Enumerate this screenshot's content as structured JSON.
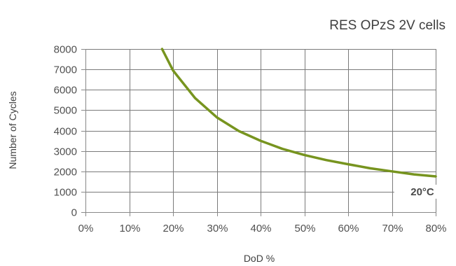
{
  "chart_data": {
    "type": "line",
    "title": "RES OPzS 2V cells",
    "xlabel": "DoD %",
    "ylabel": "Number of Cycles",
    "x_ticks": [
      "0%",
      "10%",
      "20%",
      "30%",
      "40%",
      "50%",
      "60%",
      "70%",
      "80%"
    ],
    "y_ticks": [
      "0",
      "1000",
      "2000",
      "3000",
      "4000",
      "5000",
      "6000",
      "7000",
      "8000"
    ],
    "xlim": [
      0,
      80
    ],
    "ylim": [
      0,
      8000
    ],
    "grid": true,
    "series": [
      {
        "color": "#77941f",
        "x": [
          17.5,
          20,
          25,
          30,
          35,
          40,
          45,
          50,
          55,
          60,
          65,
          70,
          75,
          80
        ],
        "y": [
          8000,
          6950,
          5600,
          4650,
          3980,
          3500,
          3100,
          2800,
          2550,
          2350,
          2150,
          2000,
          1850,
          1750
        ]
      }
    ],
    "annotations": [
      {
        "text": "20°C",
        "x": 75,
        "y": 1000
      }
    ]
  }
}
